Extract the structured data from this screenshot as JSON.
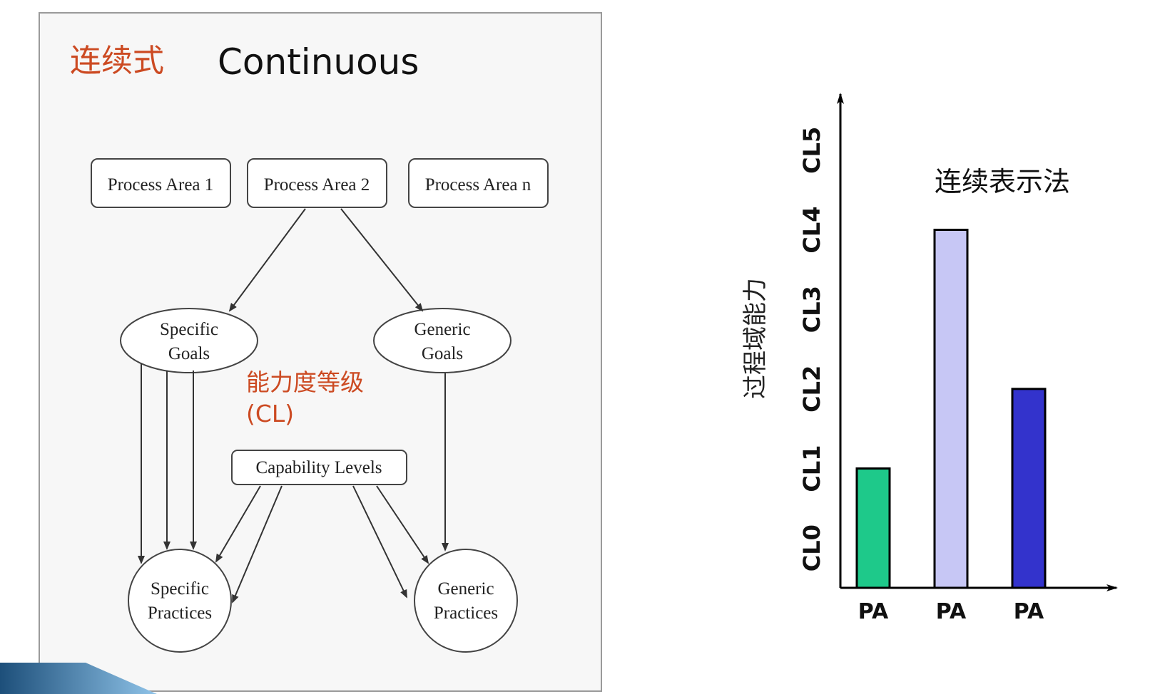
{
  "left_panel": {
    "title_cn": "连续式",
    "title_en": "Continuous",
    "process_areas": [
      "Process Area 1",
      "Process Area 2",
      "Process Area n"
    ],
    "specific_goals": [
      "Specific",
      "Goals"
    ],
    "generic_goals": [
      "Generic",
      "Goals"
    ],
    "cl_label_cn": "能力度等级",
    "cl_label_abbr": "(CL)",
    "capability_levels": "Capability Levels",
    "specific_practices": [
      "Specific",
      "Practices"
    ],
    "generic_practices": [
      "Generic",
      "Practices"
    ],
    "colors": {
      "red_text": "#cc4a22",
      "line": "#444444"
    }
  },
  "chart_data": {
    "type": "bar",
    "title": "连续表示法",
    "ylabel": "过程域能力",
    "xlabel": "",
    "categories": [
      "PA",
      "PA",
      "PA"
    ],
    "values": [
      1.5,
      4.5,
      2.5
    ],
    "y_ticks": [
      "CL0",
      "CL1",
      "CL2",
      "CL3",
      "CL4",
      "CL5"
    ],
    "ylim": [
      0,
      6
    ],
    "bar_colors": [
      "#1ec98a",
      "#c7c7f5",
      "#3333cc"
    ],
    "grid": false,
    "legend": "none"
  }
}
